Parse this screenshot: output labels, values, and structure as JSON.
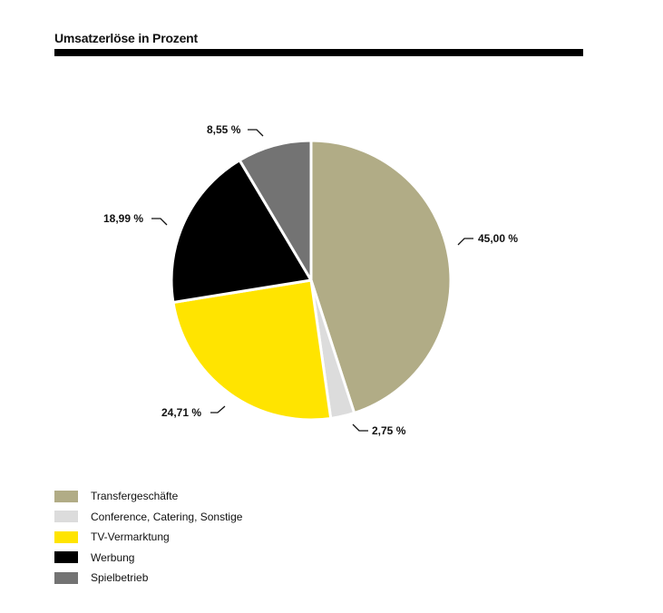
{
  "chart_data": {
    "type": "pie",
    "title": "Umsatzerlöse in Prozent",
    "start": "top",
    "direction": "clockwise",
    "slices": [
      {
        "name": "Transfergeschäfte",
        "value": 45.0,
        "label": "45,00 %",
        "color": "#b1ac86"
      },
      {
        "name": "Conference, Catering, Sonstige",
        "value": 2.75,
        "label": "2,75 %",
        "color": "#dcdcdc"
      },
      {
        "name": "TV-Vermarktung",
        "value": 24.71,
        "label": "24,71 %",
        "color": "#ffe400"
      },
      {
        "name": "Werbung",
        "value": 18.99,
        "label": "18,99 %",
        "color": "#000000"
      },
      {
        "name": "Spielbetrieb",
        "value": 8.55,
        "label": "8,55 %",
        "color": "#737373"
      }
    ],
    "legend": "bottom-left"
  }
}
